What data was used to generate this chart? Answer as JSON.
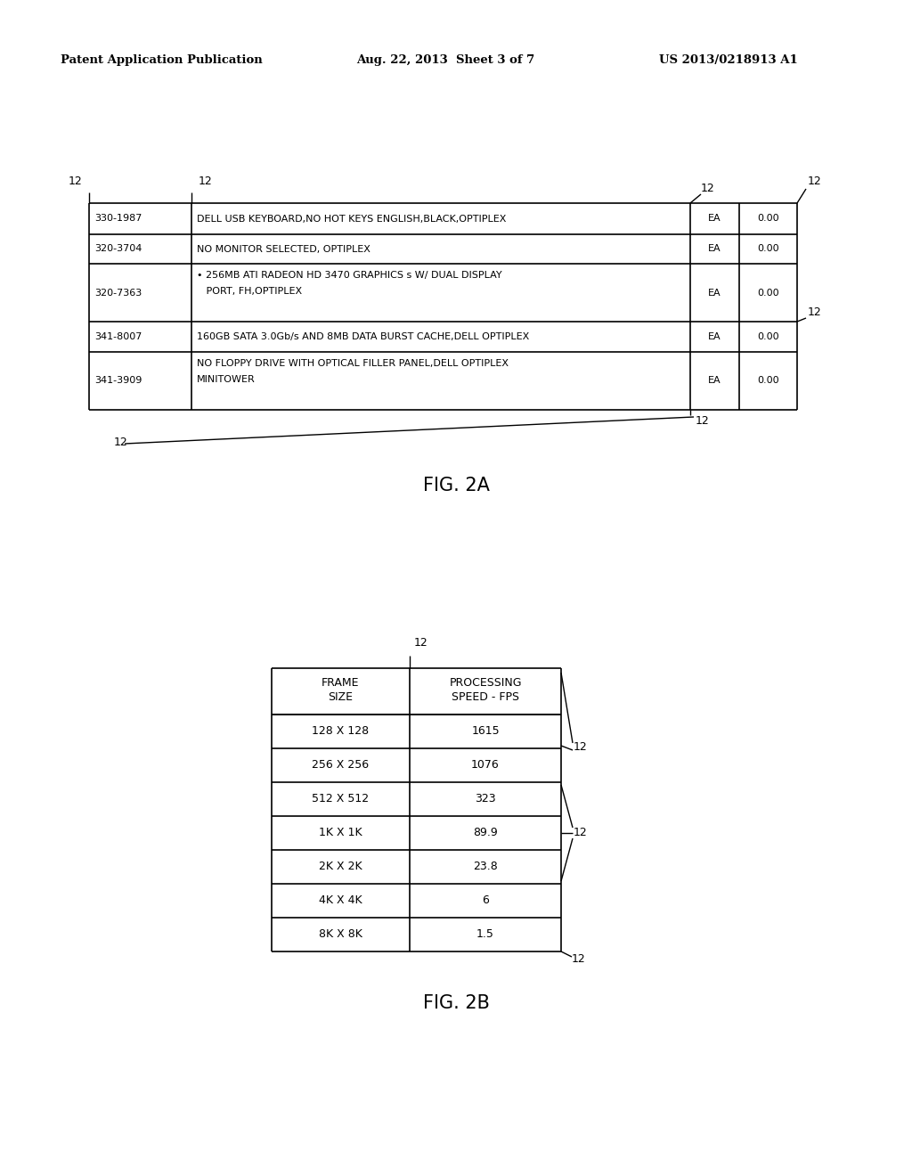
{
  "bg_color": "#ffffff",
  "header_text": {
    "left": "Patent Application Publication",
    "center": "Aug. 22, 2013  Sheet 3 of 7",
    "right": "US 2013/0218913 A1"
  },
  "fig2a": {
    "label": "FIG. 2A",
    "rows": [
      [
        "330-1987",
        "DELL USB KEYBOARD,NO HOT KEYS ENGLISH,BLACK,OPTIPLEX",
        "EA",
        "0.00"
      ],
      [
        "320-3704",
        "NO MONITOR SELECTED, OPTIPLEX",
        "EA",
        "0.00"
      ],
      [
        "320-7363",
        "• 256MB ATI RADEON HD 3470 GRAPHICS s W/ DUAL DISPLAY\n   PORT, FH,OPTIPLEX",
        "EA",
        "0.00"
      ],
      [
        "341-8007",
        "160GB SATA 3.0Gb/s AND 8MB DATA BURST CACHE,DELL OPTIPLEX",
        "EA",
        "0.00"
      ],
      [
        "341-3909",
        "NO FLOPPY DRIVE WITH OPTICAL FILLER PANEL,DELL OPTIPLEX\nMINITOWER",
        "EA",
        "0.00"
      ]
    ]
  },
  "fig2b": {
    "label": "FIG. 2B",
    "headers": [
      "FRAME\nSIZE",
      "PROCESSING\nSPEED - FPS"
    ],
    "rows": [
      [
        "128 X 128",
        "1615"
      ],
      [
        "256 X 256",
        "1076"
      ],
      [
        "512 X 512",
        "323"
      ],
      [
        "1K X 1K",
        "89.9"
      ],
      [
        "2K X 2K",
        "23.8"
      ],
      [
        "4K X 4K",
        "6"
      ],
      [
        "8K X 8K",
        "1.5"
      ]
    ]
  }
}
